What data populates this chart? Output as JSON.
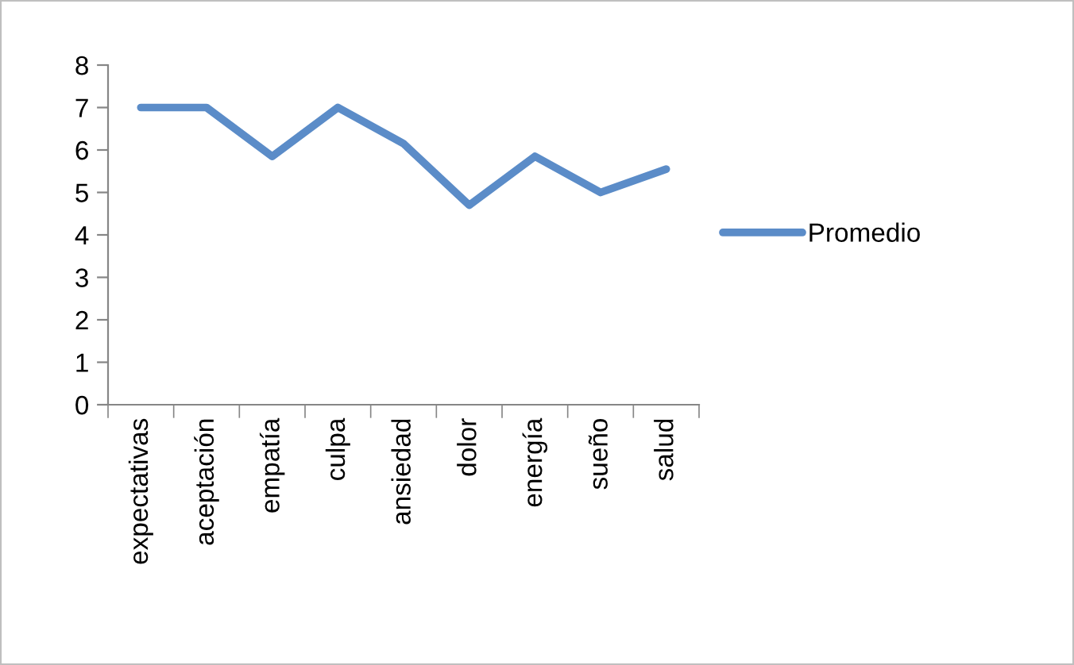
{
  "chart_data": {
    "type": "line",
    "categories": [
      "expectativas",
      "aceptación",
      "empatía",
      "culpa",
      "ansiedad",
      "dolor",
      "energía",
      "sueño",
      "salud"
    ],
    "series": [
      {
        "name": "Promedio",
        "color": "#5b8cc8",
        "values": [
          7.0,
          7.0,
          5.85,
          7.0,
          6.15,
          4.7,
          5.85,
          5.0,
          5.55
        ]
      }
    ],
    "ylim": [
      0,
      8
    ],
    "yticks": [
      0,
      1,
      2,
      3,
      4,
      5,
      6,
      7,
      8
    ],
    "grid": false,
    "legend": "right",
    "marker": "none",
    "line_style": "solid"
  }
}
